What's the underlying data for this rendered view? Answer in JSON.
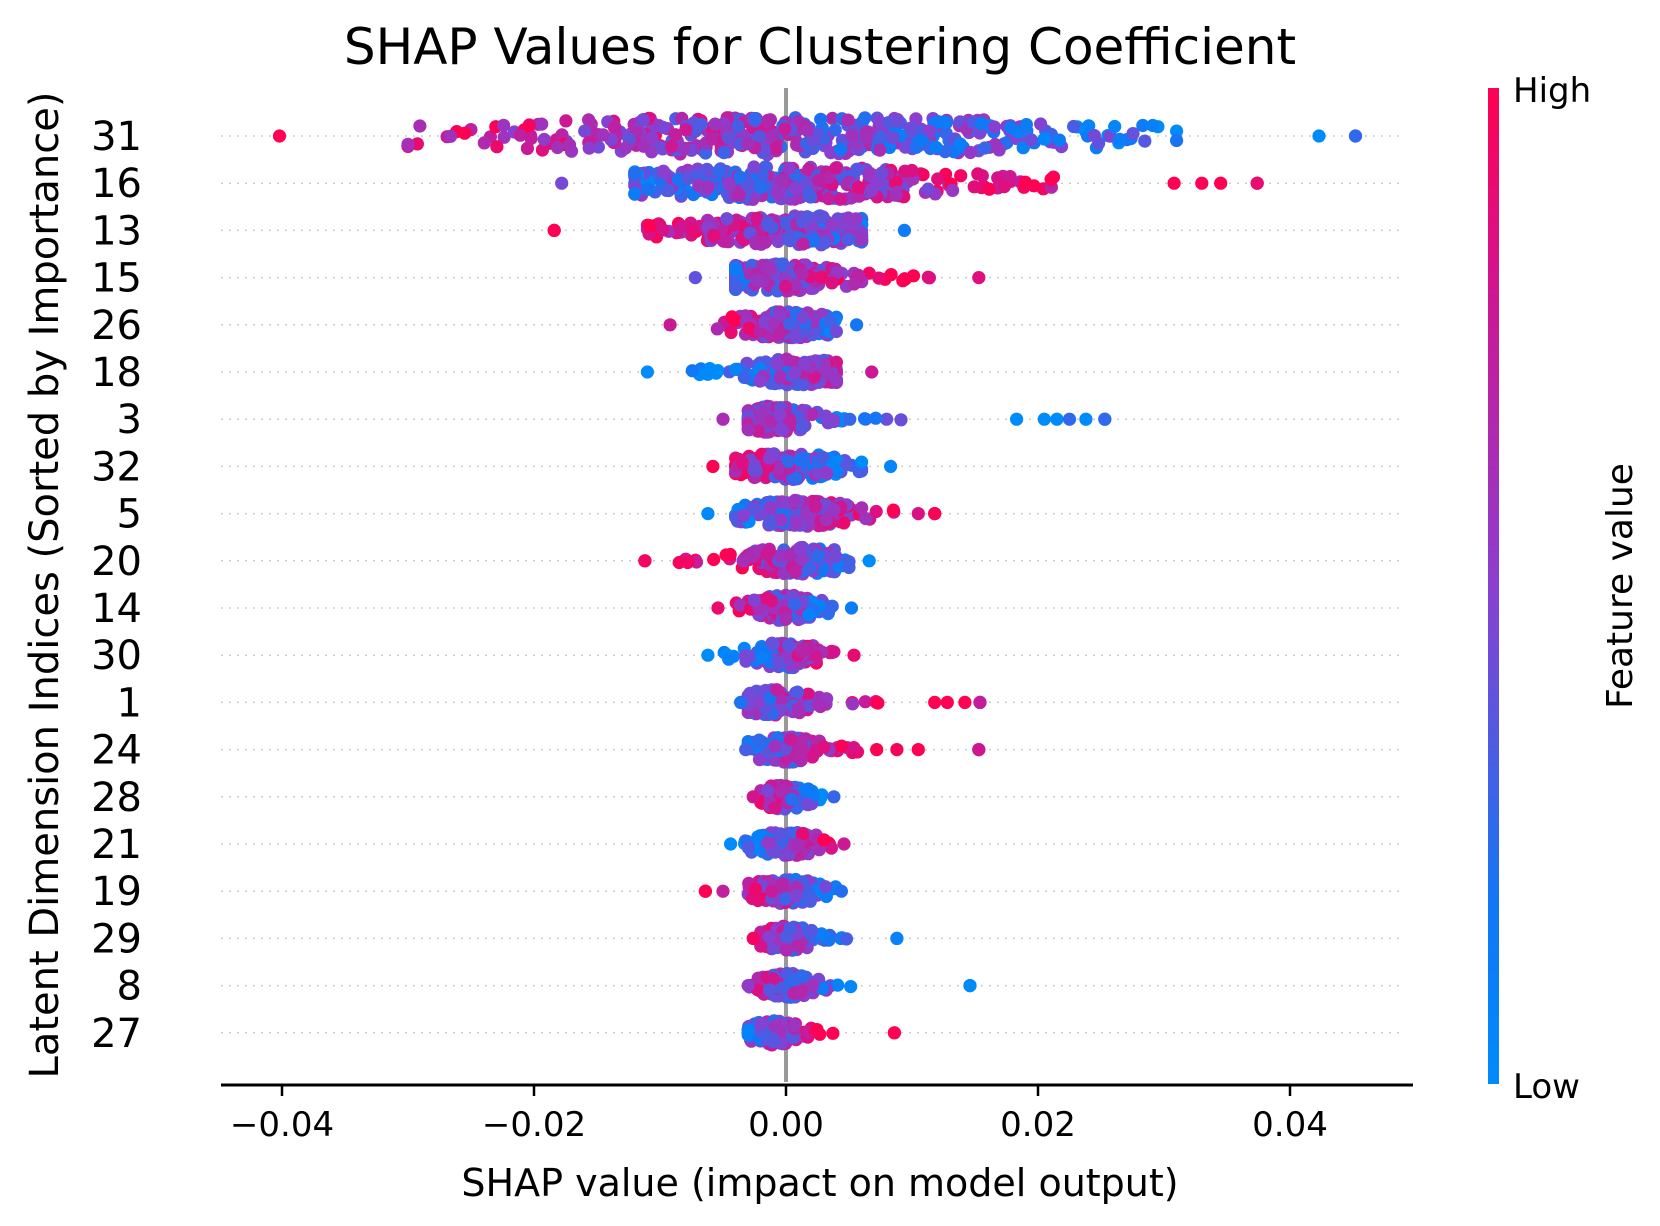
{
  "chart_data": {
    "type": "scatter",
    "subtype": "shap-beeswarm",
    "title": "SHAP Values for Clustering Coefficient",
    "xlabel": "SHAP value (impact on model output)",
    "ylabel": "Latent Dimension Indices (Sorted by Importance)",
    "xlim": [
      -0.0445,
      0.0495
    ],
    "xticks": [
      -0.04,
      -0.02,
      0.0,
      0.02,
      0.04
    ],
    "xtick_labels": [
      "−0.04",
      "−0.02",
      "0.00",
      "0.02",
      "0.04"
    ],
    "baseline": 0.0,
    "colorbar": {
      "label": "Feature value",
      "high_label": "High",
      "low_label": "Low",
      "high_color": "#ff0052",
      "low_color": "#008bfb"
    },
    "features": [
      {
        "name": "31",
        "min": -0.0402,
        "max": 0.0452,
        "core_min": -0.03,
        "core_max": 0.031,
        "center": 0.0,
        "spread": 0.018,
        "density": 1.0,
        "high_side": "left",
        "outliers": [
          0.0423,
          0.0452
        ]
      },
      {
        "name": "16",
        "min": -0.0178,
        "max": 0.0374,
        "core_min": -0.012,
        "core_max": 0.022,
        "center": 0.0,
        "spread": 0.01,
        "density": 0.75,
        "high_side": "right",
        "outliers": [
          0.0308,
          0.033,
          0.0345,
          0.0374
        ]
      },
      {
        "name": "13",
        "min": -0.0184,
        "max": 0.0094,
        "core_min": -0.011,
        "core_max": 0.006,
        "center": 0.001,
        "spread": 0.006,
        "density": 0.55,
        "high_side": "left",
        "outliers": [
          -0.0184
        ]
      },
      {
        "name": "15",
        "min": -0.0072,
        "max": 0.0153,
        "core_min": -0.004,
        "core_max": 0.012,
        "center": -0.001,
        "spread": 0.004,
        "density": 0.45,
        "high_side": "right",
        "outliers": []
      },
      {
        "name": "26",
        "min": -0.0092,
        "max": 0.0056,
        "core_min": -0.007,
        "core_max": 0.004,
        "center": 0.0,
        "spread": 0.003,
        "density": 0.4,
        "high_side": "left",
        "outliers": []
      },
      {
        "name": "18",
        "min": -0.011,
        "max": 0.0068,
        "core_min": -0.008,
        "core_max": 0.004,
        "center": 0.001,
        "spread": 0.003,
        "density": 0.4,
        "high_side": "right",
        "outliers": []
      },
      {
        "name": "3",
        "min": -0.005,
        "max": 0.0253,
        "core_min": -0.003,
        "core_max": 0.01,
        "center": -0.001,
        "spread": 0.002,
        "density": 0.4,
        "high_side": "left",
        "outliers": [
          0.0183,
          0.0205,
          0.0215,
          0.0225,
          0.0238,
          0.0253
        ]
      },
      {
        "name": "32",
        "min": -0.0058,
        "max": 0.0083,
        "core_min": -0.004,
        "core_max": 0.006,
        "center": 0.0,
        "spread": 0.003,
        "density": 0.4,
        "high_side": "left",
        "outliers": []
      },
      {
        "name": "5",
        "min": -0.0062,
        "max": 0.0118,
        "core_min": -0.004,
        "core_max": 0.009,
        "center": 0.001,
        "spread": 0.003,
        "density": 0.4,
        "high_side": "right",
        "outliers": [
          0.0105,
          0.0118
        ]
      },
      {
        "name": "20",
        "min": -0.0112,
        "max": 0.0066,
        "core_min": -0.009,
        "core_max": 0.005,
        "center": 0.001,
        "spread": 0.003,
        "density": 0.4,
        "high_side": "left",
        "outliers": [
          -0.0112
        ]
      },
      {
        "name": "14",
        "min": -0.0054,
        "max": 0.0052,
        "core_min": -0.004,
        "core_max": 0.004,
        "center": 0.0,
        "spread": 0.002,
        "density": 0.35,
        "high_side": "left",
        "outliers": []
      },
      {
        "name": "30",
        "min": -0.0062,
        "max": 0.0054,
        "core_min": -0.005,
        "core_max": 0.004,
        "center": 0.0,
        "spread": 0.002,
        "density": 0.35,
        "high_side": "right",
        "outliers": []
      },
      {
        "name": "1",
        "min": -0.0036,
        "max": 0.0154,
        "core_min": -0.003,
        "core_max": 0.008,
        "center": -0.001,
        "spread": 0.002,
        "density": 0.35,
        "high_side": "right",
        "outliers": [
          0.0118,
          0.0128,
          0.0142,
          0.0154
        ]
      },
      {
        "name": "24",
        "min": -0.0032,
        "max": 0.0153,
        "core_min": -0.003,
        "core_max": 0.006,
        "center": 0.0,
        "spread": 0.002,
        "density": 0.35,
        "high_side": "right",
        "outliers": [
          0.0072,
          0.0088,
          0.0105,
          0.0153
        ]
      },
      {
        "name": "28",
        "min": -0.0026,
        "max": 0.0038,
        "core_min": -0.002,
        "core_max": 0.003,
        "center": 0.0,
        "spread": 0.0015,
        "density": 0.3,
        "high_side": "left",
        "outliers": []
      },
      {
        "name": "21",
        "min": -0.0044,
        "max": 0.0046,
        "core_min": -0.004,
        "core_max": 0.004,
        "center": 0.0,
        "spread": 0.002,
        "density": 0.3,
        "high_side": "right",
        "outliers": []
      },
      {
        "name": "19",
        "min": -0.0064,
        "max": 0.0044,
        "core_min": -0.003,
        "core_max": 0.004,
        "center": 0.0,
        "spread": 0.002,
        "density": 0.3,
        "high_side": "left",
        "outliers": [
          -0.0064,
          -0.005
        ]
      },
      {
        "name": "29",
        "min": -0.0026,
        "max": 0.0088,
        "core_min": -0.002,
        "core_max": 0.005,
        "center": 0.0,
        "spread": 0.0015,
        "density": 0.3,
        "high_side": "left",
        "outliers": [
          0.0088
        ]
      },
      {
        "name": "8",
        "min": -0.003,
        "max": 0.0146,
        "core_min": -0.003,
        "core_max": 0.006,
        "center": 0.0,
        "spread": 0.0015,
        "density": 0.3,
        "high_side": "left",
        "outliers": [
          0.0146
        ]
      },
      {
        "name": "27",
        "min": -0.003,
        "max": 0.0086,
        "core_min": -0.003,
        "core_max": 0.004,
        "center": -0.001,
        "spread": 0.0015,
        "density": 0.3,
        "high_side": "right",
        "outliers": [
          0.0086
        ]
      }
    ]
  }
}
